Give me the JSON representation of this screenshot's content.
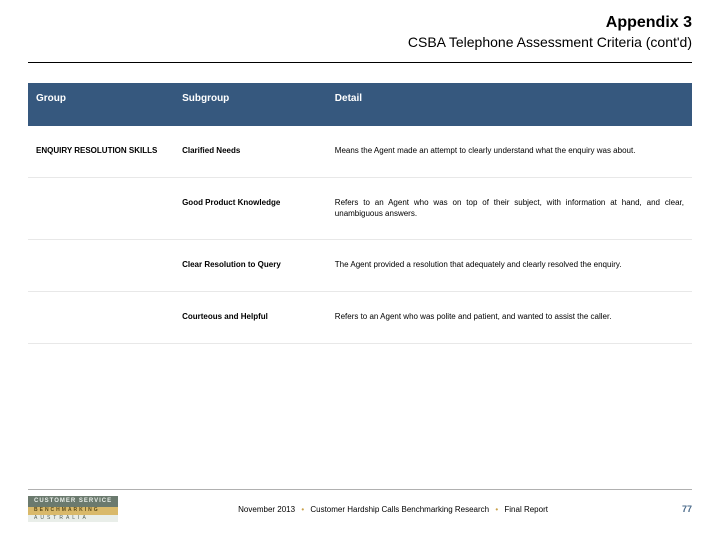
{
  "header": {
    "title": "Appendix 3",
    "subtitle": "CSBA Telephone Assessment Criteria (cont'd)"
  },
  "table": {
    "headers": {
      "group": "Group",
      "subgroup": "Subgroup",
      "detail": "Detail"
    },
    "rows": [
      {
        "group": "ENQUIRY RESOLUTION SKILLS",
        "subgroup": "Clarified Needs",
        "detail": "Means the Agent made an attempt to clearly understand what the enquiry was about."
      },
      {
        "group": "",
        "subgroup": "Good Product Knowledge",
        "detail": "Refers to an Agent who was on top of their subject, with information at hand, and clear, unambiguous answers."
      },
      {
        "group": "",
        "subgroup": "Clear Resolution to Query",
        "detail": "The Agent provided a resolution that adequately and clearly resolved the enquiry."
      },
      {
        "group": "",
        "subgroup": "Courteous and Helpful",
        "detail": "Refers to an Agent who was polite and patient, and wanted to assist the caller."
      }
    ]
  },
  "footer": {
    "logo": {
      "line1": "CUSTOMER SERVICE",
      "line2": "BENCHMARKING",
      "line3": "AUSTRALIA"
    },
    "date": "November 2013",
    "text1": "Customer Hardship Calls Benchmarking Research",
    "text2": "Final Report",
    "page": "77"
  },
  "colors": {
    "header_bg": "#36587e",
    "header_text": "#ffffff",
    "row_border": "#e8e8e8",
    "page_num": "#4a6a8a",
    "sep": "#c9a14a"
  }
}
